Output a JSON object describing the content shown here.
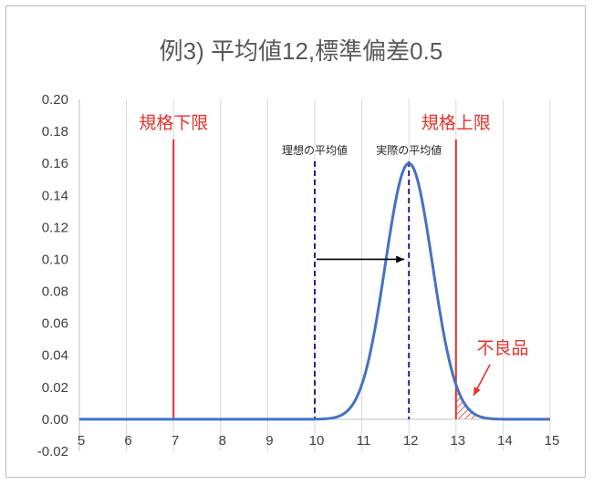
{
  "chart_data": {
    "type": "line",
    "title": "例3) 平均値12,標準偏差0.5",
    "xlabel": "",
    "ylabel": "",
    "xlim": [
      5,
      15
    ],
    "ylim": [
      -0.02,
      0.2
    ],
    "x_ticks": [
      "5",
      "6",
      "7",
      "8",
      "9",
      "10",
      "11",
      "12",
      "13",
      "14",
      "15"
    ],
    "y_ticks": [
      "-0.02",
      "0.00",
      "0.02",
      "0.04",
      "0.06",
      "0.08",
      "0.10",
      "0.12",
      "0.14",
      "0.16",
      "0.18",
      "0.20"
    ],
    "grid": "vertical",
    "series": [
      {
        "mean": 12,
        "sd": 0.5,
        "peak": 0.16,
        "color": "#4472c4"
      }
    ],
    "spec_limits": [
      {
        "x": 7,
        "label": "規格下限",
        "color": "#e8302a"
      },
      {
        "x": 13,
        "label": "規格上限",
        "color": "#e8302a"
      }
    ],
    "mean_markers": [
      {
        "x": 10,
        "label": "理想の平均値",
        "color": "#2e1a8a"
      },
      {
        "x": 12,
        "label": "実際の平均値",
        "color": "#2e1a8a"
      }
    ],
    "shift_arrow": {
      "from_x": 10,
      "to_x": 12,
      "y": 0.1
    },
    "defect_annotation": {
      "label": "不良品",
      "from_x": 13,
      "to_x": 13.4,
      "color": "#e8302a"
    }
  }
}
